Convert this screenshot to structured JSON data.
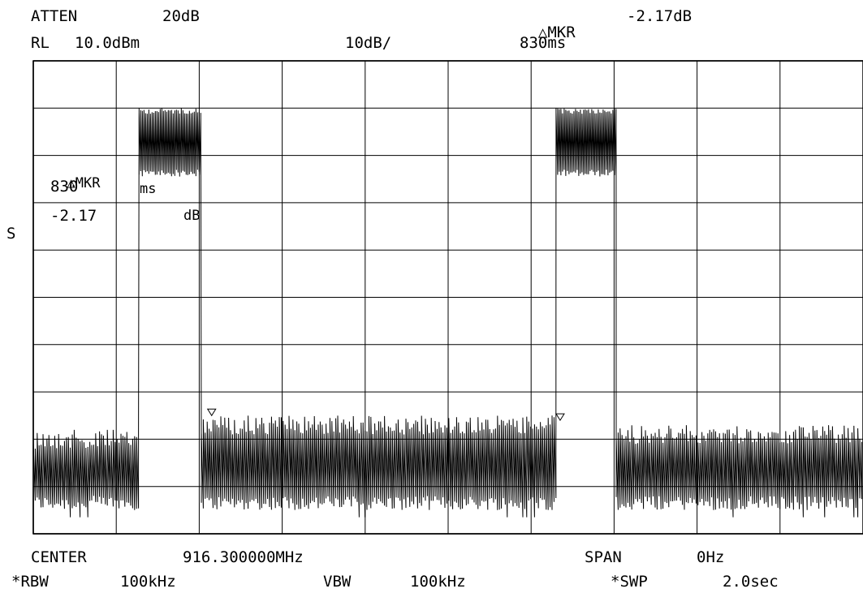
{
  "header": {
    "atten_label": "ATTEN",
    "atten_value": "20dB",
    "rl_label": "RL",
    "rl_value": "10.0dBm",
    "scale": "10dB/",
    "marker_label": "MKR",
    "marker_level": "-2.17dB",
    "marker_time": "830ms"
  },
  "side_label": "S",
  "marker_box": {
    "label": "MKR",
    "time_value": "830",
    "time_unit": "ms",
    "level_value": "-2.17",
    "level_unit": "dB"
  },
  "footer": {
    "center_label": "CENTER",
    "center_value": "916.300000MHz",
    "span_label": "SPAN",
    "span_value": "0Hz",
    "rbw_label": "*RBW",
    "rbw_value": "100kHz",
    "vbw_label": "VBW",
    "vbw_value": "100kHz",
    "swp_label": "*SWP",
    "swp_value": "2.0sec"
  },
  "chart_data": {
    "type": "line",
    "title": "",
    "xlabel": "",
    "ylabel": "",
    "x_unit": "ms",
    "y_unit": "dBm",
    "xlim": [
      0,
      2000
    ],
    "ylim": [
      -90,
      10
    ],
    "grid": true,
    "grid_divisions_x": 10,
    "grid_divisions_y": 10,
    "trace_color": "#000000",
    "series": [
      {
        "noise_floor_band": [
          -85,
          -68
        ],
        "segments": [
          {
            "x_start": 0,
            "x_end": 255,
            "state": "noise",
            "level_min": -85,
            "level_max": -68
          },
          {
            "x_start": 255,
            "x_end": 405,
            "state": "burst",
            "level_min": -13,
            "level_max": 0
          },
          {
            "x_start": 405,
            "x_end": 1260,
            "state": "noise",
            "level_min": -85,
            "level_max": -65
          },
          {
            "x_start": 1260,
            "x_end": 1405,
            "state": "burst",
            "level_min": -13,
            "level_max": 0
          },
          {
            "x_start": 1405,
            "x_end": 2000,
            "state": "noise",
            "level_min": -85,
            "level_max": -67
          }
        ]
      }
    ],
    "markers": [
      {
        "type": "delta",
        "x": 830,
        "delta_level_db": -2.17
      }
    ]
  }
}
